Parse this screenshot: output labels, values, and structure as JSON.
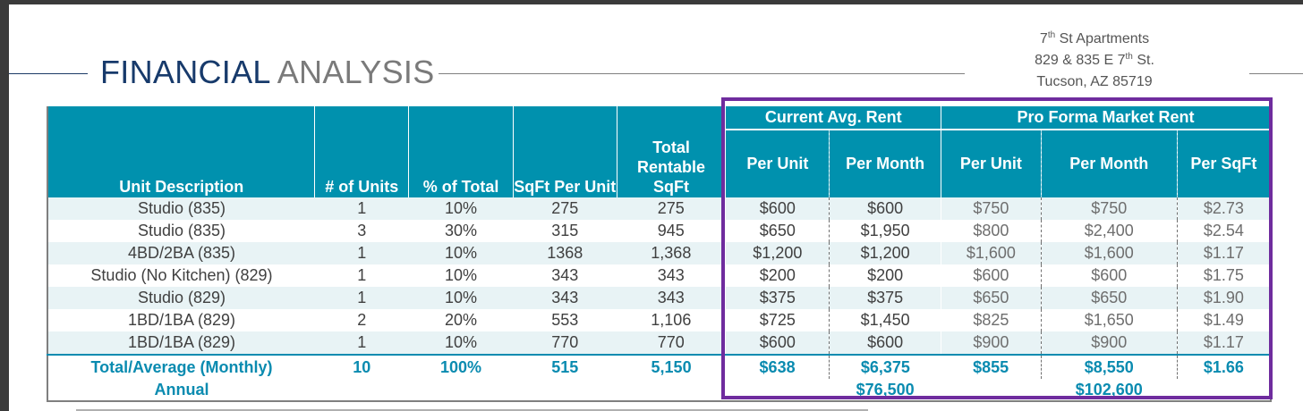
{
  "document": {
    "title_part1": "FINANCIAL",
    "title_part2": "ANALYSIS",
    "address": {
      "line1_a": "7",
      "line1_sup": "th",
      "line1_b": " St Apartments",
      "line2_a": "829 & 835 E 7",
      "line2_sup": "th",
      "line2_b": " St.",
      "line3": "Tucson, AZ 85719"
    }
  },
  "table": {
    "group_headers": {
      "current": "Current Avg. Rent",
      "proforma": "Pro Forma Market Rent"
    },
    "headers": {
      "unit_description": "Unit Description",
      "num_units": "# of Units",
      "pct_total": "% of Total",
      "sqft_per_unit": "SqFt Per Unit",
      "total_rentable_sqft": "Total Rentable SqFt",
      "cur_per_unit": "Per Unit",
      "cur_per_month": "Per Month",
      "pf_per_unit": "Per Unit",
      "pf_per_month": "Per Month",
      "pf_per_sqft": "Per SqFt"
    },
    "rows": [
      [
        "Studio (835)",
        "1",
        "10%",
        "275",
        "275",
        "$600",
        "$600",
        "$750",
        "$750",
        "$2.73"
      ],
      [
        "Studio (835)",
        "3",
        "30%",
        "315",
        "945",
        "$650",
        "$1,950",
        "$800",
        "$2,400",
        "$2.54"
      ],
      [
        "4BD/2BA (835)",
        "1",
        "10%",
        "1368",
        "1,368",
        "$1,200",
        "$1,200",
        "$1,600",
        "$1,600",
        "$1.17"
      ],
      [
        "Studio (No Kitchen) (829)",
        "1",
        "10%",
        "343",
        "343",
        "$200",
        "$200",
        "$600",
        "$600",
        "$1.75"
      ],
      [
        "Studio (829)",
        "1",
        "10%",
        "343",
        "343",
        "$375",
        "$375",
        "$650",
        "$650",
        "$1.90"
      ],
      [
        "1BD/1BA (829)",
        "2",
        "20%",
        "553",
        "1,106",
        "$725",
        "$1,450",
        "$825",
        "$1,650",
        "$1.49"
      ],
      [
        "1BD/1BA (829)",
        "1",
        "10%",
        "770",
        "770",
        "$600",
        "$600",
        "$900",
        "$900",
        "$1.17"
      ]
    ],
    "total": [
      "Total/Average (Monthly)",
      "10",
      "100%",
      "515",
      "5,150",
      "$638",
      "$6,375",
      "$855",
      "$8,550",
      "$1.66"
    ],
    "annual": {
      "label": "Annual",
      "cur_per_month": "$76,500",
      "pf_per_month": "$102,600"
    }
  },
  "colors": {
    "header_bg": "#0091ae",
    "title_blue": "#173a6b",
    "total_text": "#0a8bb0",
    "highlight_box": "#6f2c9e",
    "row_stripe": "#e8f3f5"
  }
}
